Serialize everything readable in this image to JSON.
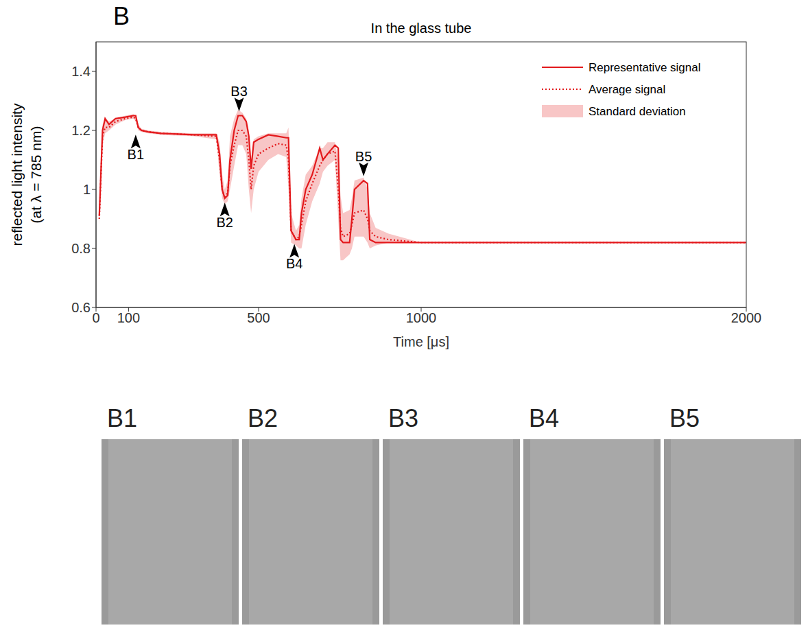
{
  "panel_letter": "B",
  "chart_data": {
    "type": "line",
    "title": "In the glass tube",
    "xlabel": "Time [μs]",
    "ylabel": [
      "reflected light intensity",
      "(at λ = 785 nm)"
    ],
    "xlim": [
      0,
      2000
    ],
    "xticks": [
      0,
      100,
      500,
      1000,
      2000
    ],
    "ylim": [
      0.6,
      1.5
    ],
    "yticks": [
      0.6,
      0.8,
      1,
      1.2,
      1.4
    ],
    "grid": false,
    "legend": "upper right",
    "x": [
      10,
      20,
      28,
      40,
      60,
      90,
      115,
      122,
      130,
      140,
      160,
      200,
      300,
      370,
      380,
      388,
      396,
      405,
      412,
      425,
      437,
      450,
      462,
      470,
      477,
      485,
      500,
      530,
      560,
      585,
      592,
      600,
      615,
      625,
      632,
      645,
      665,
      688,
      698,
      712,
      735,
      745,
      752,
      760,
      780,
      787,
      795,
      823,
      835,
      842,
      860,
      900,
      1000,
      1500,
      2000
    ],
    "series": [
      {
        "name": "Representative signal",
        "type": "line",
        "line_style": "solid",
        "color": "#e3191c",
        "values": [
          0.91,
          1.2,
          1.24,
          1.22,
          1.24,
          1.245,
          1.25,
          1.25,
          1.21,
          1.2,
          1.195,
          1.19,
          1.185,
          1.185,
          1.12,
          1.0,
          0.97,
          0.98,
          1.1,
          1.2,
          1.25,
          1.25,
          1.23,
          1.18,
          1.07,
          1.16,
          1.17,
          1.185,
          1.18,
          1.175,
          1.175,
          0.86,
          0.83,
          0.83,
          0.92,
          1.0,
          1.05,
          1.14,
          1.1,
          1.12,
          1.15,
          1.14,
          0.83,
          0.82,
          0.82,
          0.9,
          1.0,
          1.03,
          1.02,
          0.83,
          0.82,
          0.82,
          0.82,
          0.82,
          0.82
        ]
      },
      {
        "name": "Average signal",
        "type": "line",
        "line_style": "dotted",
        "color": "#e3191c",
        "values": [
          0.9,
          1.18,
          1.21,
          1.21,
          1.23,
          1.24,
          1.245,
          1.24,
          1.21,
          1.2,
          1.195,
          1.19,
          1.185,
          1.18,
          1.1,
          1.0,
          0.97,
          0.99,
          1.08,
          1.15,
          1.2,
          1.2,
          1.18,
          1.1,
          1.0,
          1.08,
          1.12,
          1.14,
          1.155,
          1.15,
          1.1,
          0.86,
          0.83,
          0.84,
          0.88,
          0.96,
          1.02,
          1.08,
          1.1,
          1.12,
          1.13,
          1.0,
          0.87,
          0.84,
          0.85,
          0.88,
          0.92,
          0.93,
          0.9,
          0.86,
          0.84,
          0.83,
          0.82,
          0.82,
          0.82
        ]
      },
      {
        "name": "Standard deviation",
        "type": "band",
        "color": "#f8c6c6",
        "lower": [
          0.88,
          1.15,
          1.19,
          1.2,
          1.22,
          1.235,
          1.24,
          1.23,
          1.2,
          1.195,
          1.19,
          1.185,
          1.18,
          1.17,
          1.05,
          0.97,
          0.95,
          0.96,
          1.0,
          1.08,
          1.15,
          1.15,
          1.12,
          1.0,
          0.92,
          1.0,
          1.06,
          1.1,
          1.12,
          1.11,
          1.0,
          0.82,
          0.81,
          0.8,
          0.8,
          0.88,
          0.96,
          1.02,
          1.06,
          1.08,
          1.1,
          0.9,
          0.76,
          0.76,
          0.78,
          0.8,
          0.84,
          0.84,
          0.82,
          0.8,
          0.81,
          0.82,
          0.82,
          0.82,
          0.82
        ],
        "upper": [
          0.92,
          1.22,
          1.24,
          1.23,
          1.24,
          1.25,
          1.255,
          1.25,
          1.22,
          1.205,
          1.2,
          1.195,
          1.19,
          1.19,
          1.16,
          1.05,
          1.0,
          1.03,
          1.18,
          1.24,
          1.27,
          1.26,
          1.24,
          1.2,
          1.1,
          1.17,
          1.18,
          1.19,
          1.19,
          1.19,
          1.21,
          0.92,
          0.86,
          0.88,
          0.97,
          1.05,
          1.08,
          1.14,
          1.14,
          1.16,
          1.16,
          1.1,
          0.98,
          0.92,
          0.93,
          0.97,
          1.03,
          1.04,
          1.0,
          0.92,
          0.87,
          0.85,
          0.82,
          0.82,
          0.82
        ]
      }
    ],
    "annotations": [
      {
        "text": "B1",
        "x": 122,
        "y": 1.19,
        "position": "below"
      },
      {
        "text": "B2",
        "x": 396,
        "y": 0.96,
        "position": "below"
      },
      {
        "text": "B3",
        "x": 440,
        "y": 1.26,
        "position": "above"
      },
      {
        "text": "B4",
        "x": 610,
        "y": 0.82,
        "position": "below"
      },
      {
        "text": "B5",
        "x": 823,
        "y": 1.04,
        "position": "above"
      }
    ]
  },
  "images": [
    {
      "label": "B1"
    },
    {
      "label": "B2"
    },
    {
      "label": "B3"
    },
    {
      "label": "B4"
    },
    {
      "label": "B5"
    }
  ]
}
